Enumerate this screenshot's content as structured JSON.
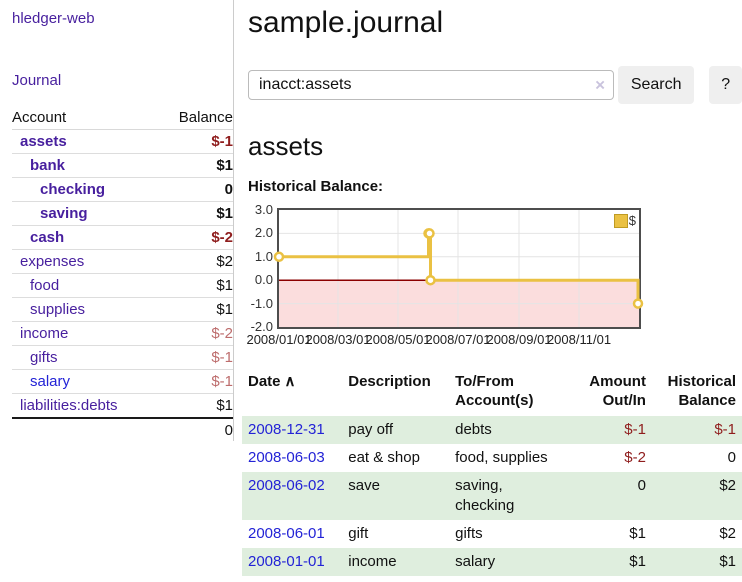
{
  "sidebar": {
    "brand": "hledger-web",
    "journal_link": "Journal",
    "accounts_table": {
      "account_header": "Account",
      "balance_header": "Balance",
      "rows": [
        {
          "name": "assets",
          "balance": "$-1"
        },
        {
          "name": "bank",
          "balance": "$1"
        },
        {
          "name": "checking",
          "balance": "0"
        },
        {
          "name": "saving",
          "balance": "$1"
        },
        {
          "name": "cash",
          "balance": "$-2"
        },
        {
          "name": "expenses",
          "balance": "$2"
        },
        {
          "name": "food",
          "balance": "$1"
        },
        {
          "name": "supplies",
          "balance": "$1"
        },
        {
          "name": "income",
          "balance": "$-2"
        },
        {
          "name": "gifts",
          "balance": "$-1"
        },
        {
          "name": "salary",
          "balance": "$-1"
        },
        {
          "name": "liabilities:debts",
          "balance": "$1"
        }
      ],
      "total": "0"
    }
  },
  "header": {
    "title": "sample.journal"
  },
  "search": {
    "value": "inacct:assets",
    "clear_icon": "×",
    "button_label": "Search",
    "help_label": "?"
  },
  "account_page": {
    "heading": "assets",
    "chart_title": "Historical Balance:"
  },
  "chart_data": {
    "type": "line",
    "title": "Historical Balance:",
    "step": true,
    "series": [
      {
        "name": "$",
        "color": "#eac143",
        "points": [
          [
            "2008-01-01",
            1
          ],
          [
            "2008-06-01",
            2
          ],
          [
            "2008-06-02",
            2
          ],
          [
            "2008-06-03",
            0
          ],
          [
            "2008-12-31",
            -1
          ]
        ]
      }
    ],
    "x_range": [
      "2008/01/01",
      "2009/01/01"
    ],
    "ylim": [
      -2,
      3
    ],
    "y_ticks": [
      "3.0",
      "2.0",
      "1.0",
      "0.0",
      "-1.0",
      "-2.0"
    ],
    "x_ticks": [
      "2008/01/01",
      "2008/03/01",
      "2008/05/01",
      "2008/07/01",
      "2008/09/01",
      "2008/11/01"
    ],
    "grid": true,
    "legend_position": "top-right",
    "zero_line_color": "#8b0000",
    "negative_region_color": "#fbdddd",
    "grid_color": "#e4e4e4"
  },
  "transactions": {
    "sort_indicator": "∧",
    "columns": [
      "Date",
      "Description",
      "To/From Account(s)",
      "Amount Out/In",
      "Historical Balance"
    ],
    "rows": [
      {
        "date": "2008-12-31",
        "description": "pay off",
        "accounts": "debts",
        "amount": "$-1",
        "balance": "$-1"
      },
      {
        "date": "2008-06-03",
        "description": "eat & shop",
        "accounts": "food, supplies",
        "amount": "$-2",
        "balance": "0"
      },
      {
        "date": "2008-06-02",
        "description": "save",
        "accounts": "saving, checking",
        "amount": "0",
        "balance": "$2"
      },
      {
        "date": "2008-06-01",
        "description": "gift",
        "accounts": "gifts",
        "amount": "$1",
        "balance": "$2"
      },
      {
        "date": "2008-01-01",
        "description": "income",
        "accounts": "salary",
        "amount": "$1",
        "balance": "$1"
      }
    ]
  }
}
